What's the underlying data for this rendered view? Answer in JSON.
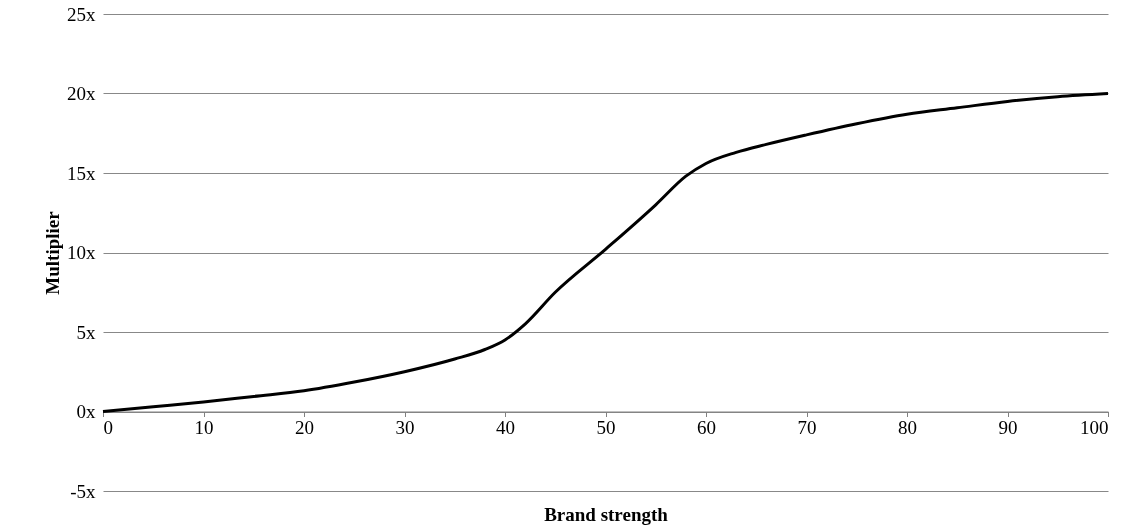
{
  "chart_data": {
    "type": "line",
    "xlabel": "Brand strength",
    "ylabel": "Multiplier",
    "x": [
      0,
      5,
      10,
      15,
      20,
      25,
      30,
      35,
      38,
      40,
      42,
      45,
      50,
      55,
      58,
      60,
      63,
      66,
      70,
      75,
      80,
      85,
      90,
      95,
      100
    ],
    "series": [
      {
        "color": "#000000",
        "values": [
          0,
          0.3,
          0.6,
          0.95,
          1.3,
          1.85,
          2.5,
          3.3,
          3.9,
          4.5,
          5.5,
          7.5,
          10.2,
          13,
          14.8,
          15.6,
          16.3,
          16.8,
          17.4,
          18.1,
          18.7,
          19.1,
          19.5,
          19.8,
          20
        ]
      }
    ],
    "xlim": [
      0,
      100
    ],
    "xticks": [
      0,
      10,
      20,
      30,
      40,
      50,
      60,
      70,
      80,
      90,
      100
    ],
    "ylim": [
      -5,
      25
    ],
    "yticks": [
      {
        "value": -5,
        "label": "-5x"
      },
      {
        "value": 0,
        "label": "0x"
      },
      {
        "value": 5,
        "label": "5x"
      },
      {
        "value": 10,
        "label": "10x"
      },
      {
        "value": 15,
        "label": "15x"
      },
      {
        "value": 20,
        "label": "20x"
      },
      {
        "value": 25,
        "label": "25x"
      }
    ],
    "grid": "y",
    "marker": "none",
    "line_style": "solid"
  }
}
